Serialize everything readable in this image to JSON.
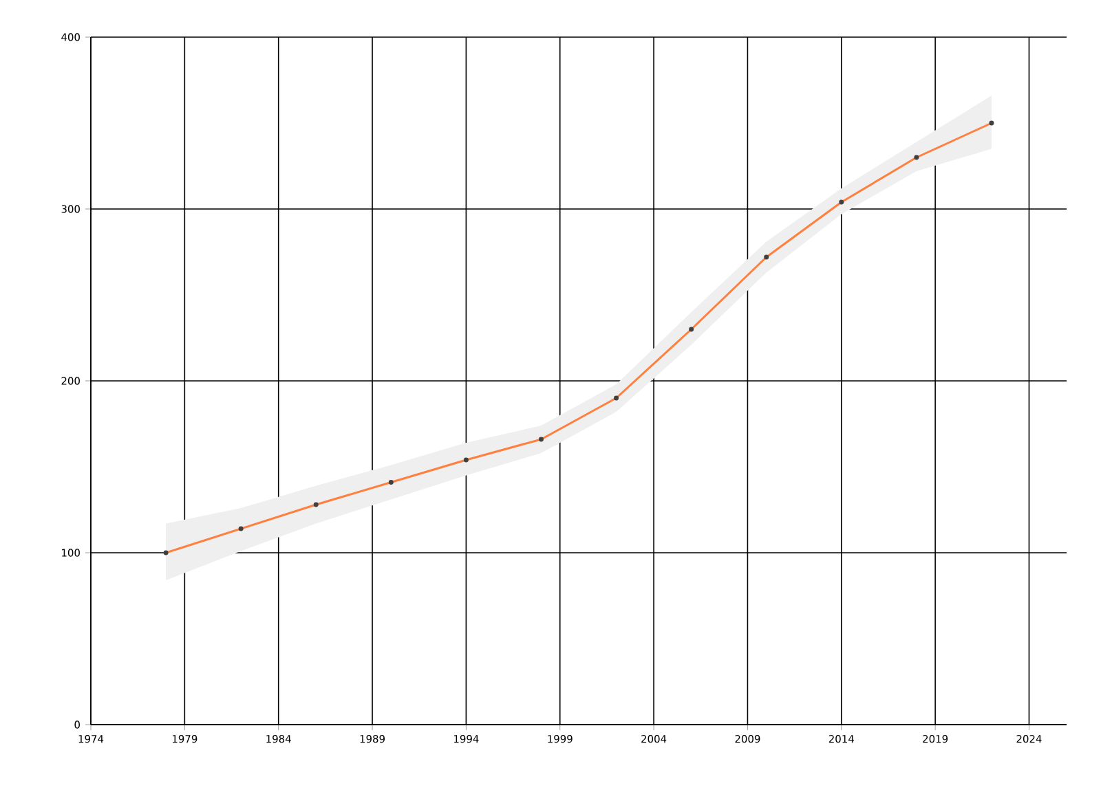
{
  "chart_data": {
    "type": "line",
    "x": [
      1978,
      1982,
      1986,
      1990,
      1994,
      1998,
      2002,
      2006,
      2010,
      2014,
      2018,
      2022
    ],
    "series": [
      {
        "color": "#ff7f3f",
        "values": [
          100,
          114,
          128,
          141,
          154,
          166,
          190,
          230,
          272,
          304,
          330,
          350
        ],
        "lower": [
          84,
          101,
          117,
          131,
          145,
          158,
          182,
          221,
          263,
          297,
          322,
          335
        ],
        "upper": [
          117,
          126,
          139,
          151,
          164,
          174,
          198,
          240,
          281,
          312,
          339,
          366
        ]
      }
    ],
    "xlim": [
      1974,
      2026
    ],
    "xticks": [
      1974,
      1979,
      1984,
      1989,
      1994,
      1999,
      2004,
      2009,
      2014,
      2019,
      2024
    ],
    "ylim": [
      0,
      400
    ],
    "yticks": [
      0,
      100,
      200,
      300,
      400
    ],
    "grid": true,
    "marker": "circle",
    "line_style": "solid"
  }
}
